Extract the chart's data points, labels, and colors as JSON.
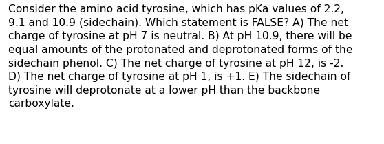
{
  "lines": [
    "Consider the amino acid tyrosine, which has pKa values of 2.2,",
    "9.1 and 10.9 (sidechain). Which statement is FALSE? A) The net",
    "charge of tyrosine at pH 7 is neutral. B) At pH 10.9, there will be",
    "equal amounts of the protonated and deprotonated forms of the",
    "sidechain phenol. C) The net charge of tyrosine at pH 12, is -2.",
    "D) The net charge of tyrosine at pH 1, is +1. E) The sidechain of",
    "tyrosine will deprotonate at a lower pH than the backbone",
    "carboxylate."
  ],
  "background_color": "#ffffff",
  "text_color": "#000000",
  "font_size": 11.2,
  "font_family": "DejaVu Sans",
  "fig_width": 5.58,
  "fig_height": 2.09,
  "dpi": 100
}
